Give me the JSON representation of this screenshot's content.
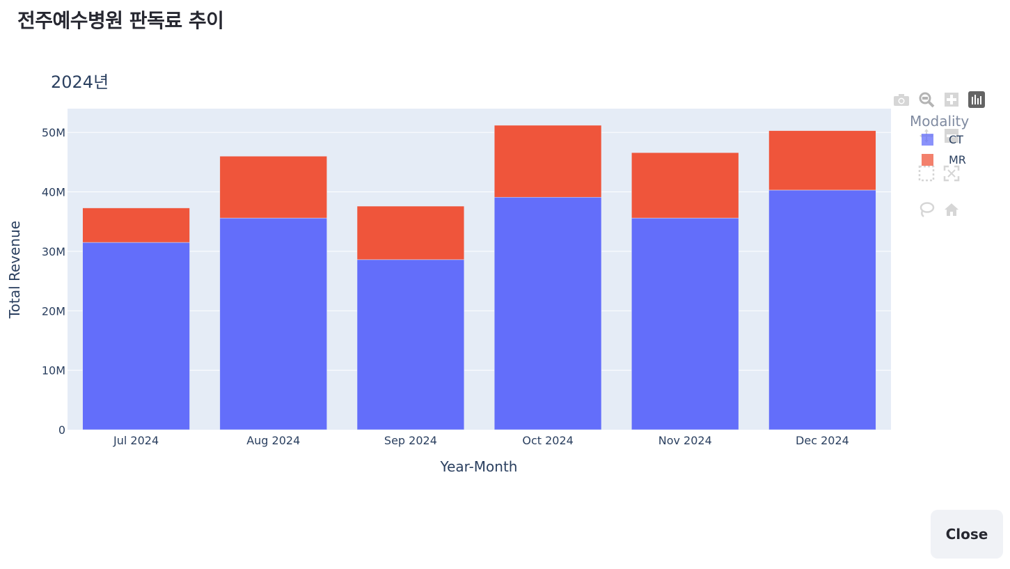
{
  "page": {
    "title": "전주예수병원 판독료 추이",
    "close_label": "Close"
  },
  "chart_data": {
    "type": "bar",
    "barmode": "stack",
    "title": "2024년",
    "xlabel": "Year-Month",
    "ylabel": "Total Revenue",
    "categories": [
      "Jul 2024",
      "Aug 2024",
      "Sep 2024",
      "Oct 2024",
      "Nov 2024",
      "Dec 2024"
    ],
    "series": [
      {
        "name": "CT",
        "color": "#636efa",
        "values": [
          31500000,
          35600000,
          28600000,
          39100000,
          35600000,
          40300000
        ]
      },
      {
        "name": "MR",
        "color": "#ef553b",
        "values": [
          5800000,
          10400000,
          9000000,
          12100000,
          11000000,
          10000000
        ]
      }
    ],
    "ylim": [
      0,
      54000000
    ],
    "yticks": [
      0,
      10000000,
      20000000,
      30000000,
      40000000,
      50000000
    ],
    "ytick_labels": [
      "0",
      "10M",
      "20M",
      "30M",
      "40M",
      "50M"
    ],
    "legend_title": "Modality",
    "legend_position": "right",
    "grid": true,
    "plot_bg": "#e5ecf6"
  },
  "toolbar": {
    "icons": [
      "camera-icon",
      "zoom-icon",
      "zoom-in-icon",
      "bar-chart-icon",
      "pan-icon",
      "zoom-out-icon",
      "box-select-icon",
      "autoscale-icon",
      "lasso-icon",
      "home-icon"
    ]
  }
}
